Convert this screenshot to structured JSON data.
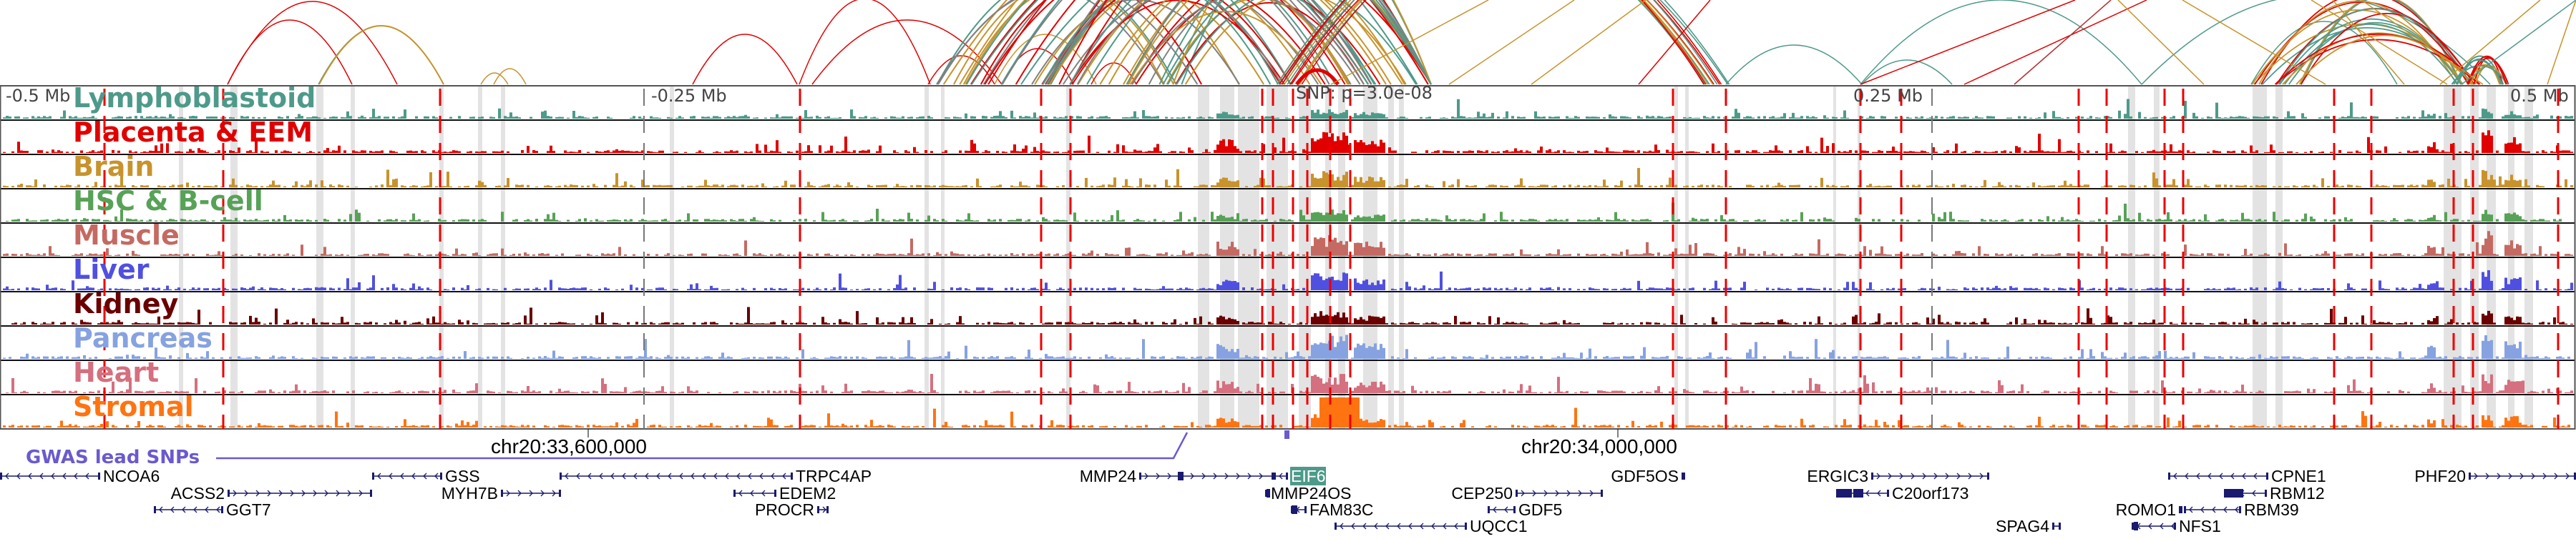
{
  "viewer": {
    "scale_labels": [
      "-0.5 Mb",
      "-0.25 Mb",
      "0.25 Mb",
      "0.5 Mb"
    ],
    "snp_label": "SNP: p=3.0e-08",
    "coord_labels": [
      "chr20:33,600,000",
      "chr20:34,000,000"
    ],
    "gwas_label": "GWAS lead SNPs"
  },
  "colors": {
    "highlight_band": "#e3e3e3",
    "dashed_line": "#ee0000",
    "gwas": "#6a5acd",
    "gene": "#1a1a6e",
    "eif6_highlight": "#4e9a8a"
  },
  "tracks": [
    {
      "name": "Lymphoblastoid",
      "color": "#4e9a8a"
    },
    {
      "name": "Placenta & EEM",
      "color": "#e00000"
    },
    {
      "name": "Brain",
      "color": "#c8932c"
    },
    {
      "name": "HSC & B-cell",
      "color": "#57a257"
    },
    {
      "name": "Muscle",
      "color": "#c46a62"
    },
    {
      "name": "Liver",
      "color": "#5050e0"
    },
    {
      "name": "Kidney",
      "color": "#6a0000"
    },
    {
      "name": "Pancreas",
      "color": "#86a2e0"
    },
    {
      "name": "Heart",
      "color": "#d4707f"
    },
    {
      "name": "Stromal",
      "color": "#ff7410"
    }
  ],
  "genes": [
    {
      "name": "NCOA6",
      "strand": "-",
      "row": 0
    },
    {
      "name": "GSS",
      "strand": "-",
      "row": 0
    },
    {
      "name": "TRPC4AP",
      "strand": "-",
      "row": 0
    },
    {
      "name": "MMP24",
      "strand": "+",
      "row": 0
    },
    {
      "name": "EIF6",
      "strand": "-",
      "row": 0,
      "highlight": true
    },
    {
      "name": "GDF5OS",
      "strand": "+",
      "row": 0
    },
    {
      "name": "ERGIC3",
      "strand": "+",
      "row": 0
    },
    {
      "name": "CPNE1",
      "strand": "-",
      "row": 0
    },
    {
      "name": "PHF20",
      "strand": "+",
      "row": 0
    },
    {
      "name": "ACSS2",
      "strand": "+",
      "row": 1
    },
    {
      "name": "MYH7B",
      "strand": "+",
      "row": 1
    },
    {
      "name": "EDEM2",
      "strand": "-",
      "row": 1
    },
    {
      "name": "MMP24OS",
      "strand": "+",
      "row": 1
    },
    {
      "name": "CEP250",
      "strand": "+",
      "row": 1
    },
    {
      "name": "C20orf173",
      "strand": "-",
      "row": 1
    },
    {
      "name": "RBM12",
      "strand": "-",
      "row": 1
    },
    {
      "name": "GGT7",
      "strand": "-",
      "row": 2
    },
    {
      "name": "PROCR",
      "strand": "+",
      "row": 2
    },
    {
      "name": "FAM83C",
      "strand": "-",
      "row": 2
    },
    {
      "name": "GDF5",
      "strand": "-",
      "row": 2
    },
    {
      "name": "ROMO1",
      "strand": "+",
      "row": 2
    },
    {
      "name": "RBM39",
      "strand": "-",
      "row": 2
    },
    {
      "name": "UQCC1",
      "strand": "-",
      "row": 3
    },
    {
      "name": "SPAG4",
      "strand": "+",
      "row": 3
    },
    {
      "name": "NFS1",
      "strand": "-",
      "row": 3
    }
  ]
}
